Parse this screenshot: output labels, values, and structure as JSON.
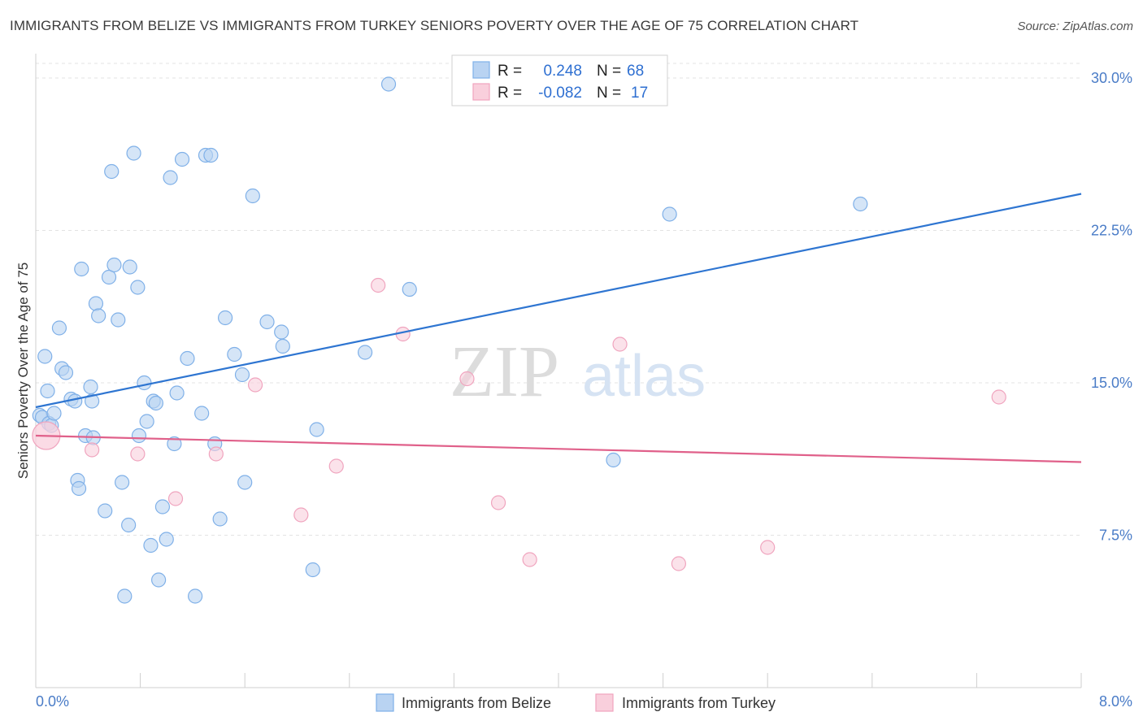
{
  "chart_data": {
    "type": "scatter",
    "title": "IMMIGRANTS FROM BELIZE VS IMMIGRANTS FROM TURKEY SENIORS POVERTY OVER THE AGE OF 75 CORRELATION CHART",
    "source": "Source: ZipAtlas.com",
    "xlabel": "",
    "ylabel": "Seniors Poverty Over the Age of 75",
    "xlim": [
      0,
      8
    ],
    "ylim": [
      0,
      31.2
    ],
    "x_tick_labels": [
      "0.0%",
      "8.0%"
    ],
    "y_ticks": [
      {
        "value": 7.5,
        "label": "7.5%"
      },
      {
        "value": 15.0,
        "label": "15.0%"
      },
      {
        "value": 22.5,
        "label": "22.5%"
      },
      {
        "value": 30.0,
        "label": "30.0%"
      }
    ],
    "watermark": {
      "zip": "ZIP",
      "atlas": "atlas"
    },
    "legend": [
      {
        "r_label": "R =",
        "r_value": "0.248",
        "n_label": "N =",
        "n_value": "68"
      },
      {
        "r_label": "R =",
        "r_value": "-0.082",
        "n_label": "N =",
        "n_value": "17"
      }
    ],
    "series": [
      {
        "name": "Immigrants from Belize",
        "color": "#7fb0e8",
        "fill": "#b9d3f2",
        "line_color": "#2e75d1",
        "trend": {
          "x0": 0.0,
          "y0": 13.8,
          "x1": 8.0,
          "y1": 24.3
        },
        "points": [
          [
            0.03,
            13.4
          ],
          [
            0.05,
            13.3
          ],
          [
            0.07,
            16.3
          ],
          [
            0.09,
            14.6
          ],
          [
            0.1,
            13.0
          ],
          [
            0.12,
            12.9
          ],
          [
            0.14,
            13.5
          ],
          [
            0.18,
            17.7
          ],
          [
            0.2,
            15.7
          ],
          [
            0.23,
            15.5
          ],
          [
            0.27,
            14.2
          ],
          [
            0.3,
            14.1
          ],
          [
            0.32,
            10.2
          ],
          [
            0.33,
            9.8
          ],
          [
            0.35,
            20.6
          ],
          [
            0.38,
            12.4
          ],
          [
            0.42,
            14.8
          ],
          [
            0.44,
            12.3
          ],
          [
            0.46,
            18.9
          ],
          [
            0.48,
            18.3
          ],
          [
            0.53,
            8.7
          ],
          [
            0.56,
            20.2
          ],
          [
            0.58,
            25.4
          ],
          [
            0.6,
            20.8
          ],
          [
            0.63,
            18.1
          ],
          [
            0.66,
            10.1
          ],
          [
            0.68,
            4.5
          ],
          [
            0.71,
            8.0
          ],
          [
            0.72,
            20.7
          ],
          [
            0.75,
            26.3
          ],
          [
            0.78,
            19.7
          ],
          [
            0.79,
            12.4
          ],
          [
            0.83,
            15.0
          ],
          [
            0.85,
            13.1
          ],
          [
            0.88,
            7.0
          ],
          [
            0.9,
            14.1
          ],
          [
            0.92,
            14.0
          ],
          [
            0.94,
            5.3
          ],
          [
            0.97,
            8.9
          ],
          [
            1.0,
            7.3
          ],
          [
            1.03,
            25.1
          ],
          [
            1.06,
            12.0
          ],
          [
            1.08,
            14.5
          ],
          [
            1.12,
            26.0
          ],
          [
            1.16,
            16.2
          ],
          [
            1.22,
            4.5
          ],
          [
            1.27,
            13.5
          ],
          [
            1.3,
            26.2
          ],
          [
            1.34,
            26.2
          ],
          [
            1.37,
            12.0
          ],
          [
            1.41,
            8.3
          ],
          [
            1.45,
            18.2
          ],
          [
            1.52,
            16.4
          ],
          [
            1.58,
            15.4
          ],
          [
            1.6,
            10.1
          ],
          [
            1.66,
            24.2
          ],
          [
            1.77,
            18.0
          ],
          [
            1.88,
            17.5
          ],
          [
            1.89,
            16.8
          ],
          [
            2.12,
            5.8
          ],
          [
            2.15,
            12.7
          ],
          [
            2.52,
            16.5
          ],
          [
            2.7,
            29.7
          ],
          [
            2.86,
            19.6
          ],
          [
            4.42,
            11.2
          ],
          [
            4.85,
            23.3
          ],
          [
            6.31,
            23.8
          ],
          [
            0.43,
            14.1
          ]
        ]
      },
      {
        "name": "Immigrants from Turkey",
        "color": "#f0a4be",
        "fill": "#f9cfdc",
        "line_color": "#e0608a",
        "trend": {
          "x0": 0.0,
          "y0": 12.4,
          "x1": 8.0,
          "y1": 11.1
        },
        "points": [
          [
            0.08,
            12.4
          ],
          [
            0.43,
            11.7
          ],
          [
            0.78,
            11.5
          ],
          [
            1.07,
            9.3
          ],
          [
            1.38,
            11.5
          ],
          [
            1.68,
            14.9
          ],
          [
            2.03,
            8.5
          ],
          [
            2.3,
            10.9
          ],
          [
            2.62,
            19.8
          ],
          [
            2.81,
            17.4
          ],
          [
            3.3,
            15.2
          ],
          [
            3.54,
            9.1
          ],
          [
            3.78,
            6.3
          ],
          [
            4.47,
            16.9
          ],
          [
            4.92,
            6.1
          ],
          [
            5.6,
            6.9
          ],
          [
            7.37,
            14.3
          ]
        ]
      }
    ]
  }
}
